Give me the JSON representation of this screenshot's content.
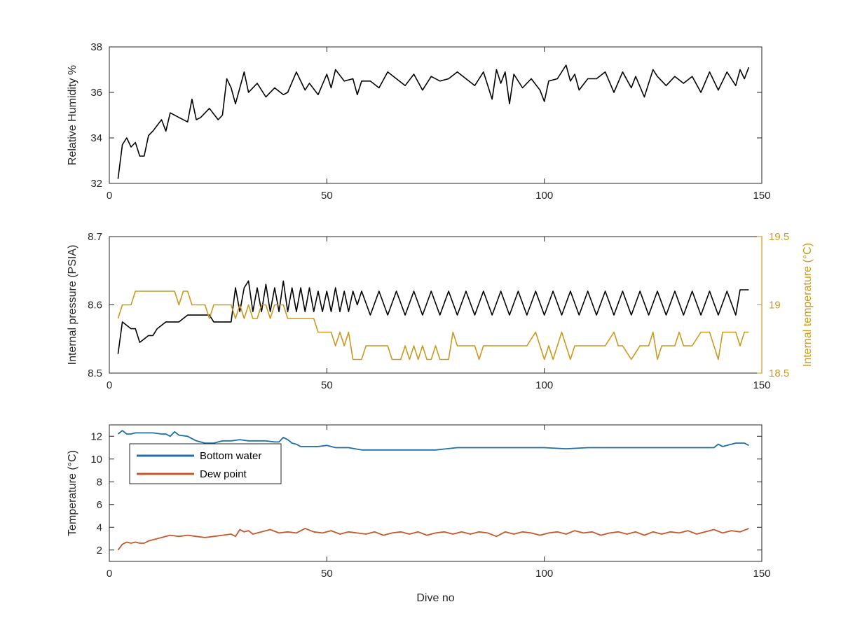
{
  "chart_data": [
    {
      "type": "line",
      "title": "",
      "xlabel": "",
      "ylabel": "Relative Humidity %",
      "xlim": [
        0,
        150
      ],
      "ylim": [
        32,
        38
      ],
      "xticks": [
        0,
        50,
        100,
        150
      ],
      "yticks": [
        32,
        34,
        36,
        38
      ],
      "grid": false,
      "series": [
        {
          "name": "",
          "color": "#000000",
          "x": [
            2,
            3,
            4,
            5,
            6,
            7,
            8,
            9,
            10,
            12,
            13,
            14,
            16,
            18,
            19,
            20,
            21,
            23,
            25,
            26,
            27,
            28,
            29,
            31,
            32,
            34,
            36,
            38,
            40,
            41,
            43,
            45,
            46,
            48,
            50,
            51,
            52,
            54,
            56,
            57,
            58,
            60,
            62,
            64,
            66,
            68,
            70,
            72,
            74,
            76,
            78,
            80,
            82,
            84,
            86,
            88,
            89,
            90,
            91,
            92,
            93,
            95,
            97,
            99,
            100,
            101,
            103,
            105,
            106,
            107,
            108,
            110,
            112,
            114,
            116,
            118,
            120,
            121,
            123,
            125,
            126,
            128,
            130,
            132,
            134,
            136,
            138,
            140,
            142,
            144,
            145,
            146,
            147
          ],
          "y": [
            32.2,
            33.7,
            34.0,
            33.6,
            33.8,
            33.2,
            33.2,
            34.1,
            34.3,
            34.8,
            34.3,
            35.1,
            34.9,
            34.7,
            35.7,
            34.8,
            34.9,
            35.3,
            34.8,
            35.0,
            36.6,
            36.2,
            35.5,
            36.9,
            36.0,
            36.4,
            35.8,
            36.2,
            35.9,
            36.0,
            36.9,
            36.1,
            36.4,
            35.9,
            36.8,
            36.2,
            37.0,
            36.5,
            36.6,
            35.9,
            36.5,
            36.5,
            36.2,
            36.9,
            36.6,
            36.3,
            36.8,
            36.1,
            36.7,
            36.5,
            36.6,
            36.9,
            36.6,
            36.3,
            36.9,
            35.7,
            37.0,
            36.4,
            36.9,
            35.5,
            36.8,
            36.2,
            36.6,
            36.1,
            35.6,
            36.5,
            36.6,
            37.2,
            36.5,
            36.8,
            36.1,
            36.6,
            36.6,
            36.9,
            36.0,
            36.9,
            36.2,
            36.7,
            35.8,
            37.0,
            36.7,
            36.3,
            36.7,
            36.4,
            36.7,
            36.0,
            36.9,
            36.1,
            36.9,
            36.3,
            37.0,
            36.6,
            37.1
          ]
        }
      ]
    },
    {
      "type": "line",
      "title": "",
      "xlabel": "",
      "ylabel": "Internal pressure (PSIA)",
      "y2label": "Internal temperature (°C)",
      "xlim": [
        0,
        150
      ],
      "ylim": [
        8.5,
        8.7
      ],
      "y2lim": [
        18.5,
        19.5
      ],
      "xticks": [
        0,
        50,
        100,
        150
      ],
      "yticks": [
        8.5,
        8.6,
        8.7
      ],
      "y2ticks": [
        18.5,
        19,
        19.5
      ],
      "y2color": "#c79a20",
      "grid": false,
      "series": [
        {
          "name": "",
          "axis": "left",
          "color": "#000000",
          "x": [
            2,
            3,
            4,
            5,
            6,
            7,
            8,
            9,
            10,
            11,
            12,
            13,
            14,
            15,
            16,
            17,
            18,
            19,
            20,
            21,
            22,
            23,
            24,
            25,
            26,
            27,
            28,
            29,
            30,
            31,
            32,
            33,
            34,
            35,
            36,
            37,
            38,
            39,
            40,
            41,
            42,
            43,
            44,
            45,
            46,
            47,
            48,
            49,
            50,
            51,
            52,
            53,
            54,
            55,
            56,
            57,
            58,
            60,
            62,
            64,
            66,
            68,
            70,
            72,
            74,
            76,
            78,
            80,
            82,
            84,
            86,
            88,
            90,
            92,
            94,
            96,
            98,
            100,
            102,
            104,
            106,
            108,
            110,
            112,
            114,
            116,
            118,
            120,
            122,
            124,
            126,
            128,
            130,
            132,
            134,
            136,
            138,
            140,
            142,
            144,
            145,
            146,
            147
          ],
          "y": [
            8.528,
            8.575,
            8.57,
            8.565,
            8.565,
            8.545,
            8.55,
            8.555,
            8.555,
            8.565,
            8.57,
            8.575,
            8.575,
            8.575,
            8.575,
            8.58,
            8.585,
            8.585,
            8.585,
            8.585,
            8.585,
            8.585,
            8.575,
            8.575,
            8.575,
            8.575,
            8.575,
            8.625,
            8.59,
            8.625,
            8.635,
            8.59,
            8.625,
            8.59,
            8.63,
            8.59,
            8.625,
            8.59,
            8.635,
            8.59,
            8.625,
            8.59,
            8.625,
            8.59,
            8.625,
            8.59,
            8.62,
            8.59,
            8.62,
            8.59,
            8.625,
            8.59,
            8.62,
            8.59,
            8.62,
            8.6,
            8.62,
            8.585,
            8.62,
            8.585,
            8.62,
            8.585,
            8.62,
            8.585,
            8.62,
            8.585,
            8.62,
            8.585,
            8.62,
            8.585,
            8.62,
            8.585,
            8.62,
            8.585,
            8.62,
            8.585,
            8.62,
            8.585,
            8.62,
            8.585,
            8.62,
            8.585,
            8.62,
            8.585,
            8.62,
            8.585,
            8.62,
            8.585,
            8.62,
            8.585,
            8.62,
            8.585,
            8.62,
            8.585,
            8.62,
            8.585,
            8.62,
            8.585,
            8.62,
            8.585,
            8.622,
            8.622,
            8.622
          ]
        },
        {
          "name": "",
          "axis": "right",
          "color": "#c79a20",
          "x": [
            2,
            3,
            4,
            5,
            6,
            7,
            8,
            9,
            10,
            12,
            14,
            15,
            16,
            17,
            18,
            19,
            20,
            21,
            22,
            23,
            24,
            25,
            26,
            27,
            28,
            29,
            30,
            31,
            32,
            33,
            34,
            35,
            36,
            37,
            38,
            39,
            40,
            41,
            42,
            44,
            46,
            47,
            48,
            49,
            50,
            51,
            52,
            53,
            54,
            55,
            56,
            57,
            58,
            59,
            60,
            61,
            62,
            63,
            64,
            65,
            66,
            67,
            68,
            69,
            70,
            71,
            72,
            73,
            74,
            75,
            76,
            77,
            78,
            79,
            80,
            81,
            82,
            83,
            84,
            85,
            86,
            88,
            90,
            92,
            94,
            96,
            98,
            99,
            100,
            101,
            102,
            103,
            104,
            105,
            106,
            107,
            108,
            109,
            110,
            112,
            114,
            116,
            117,
            118,
            120,
            122,
            124,
            125,
            126,
            127,
            128,
            130,
            131,
            132,
            134,
            136,
            138,
            140,
            141,
            142,
            144,
            145,
            146,
            147
          ],
          "y": [
            18.9,
            19,
            19,
            19,
            19.1,
            19.1,
            19.1,
            19.1,
            19.1,
            19.1,
            19.1,
            19.1,
            19.0,
            19.1,
            19.1,
            19.0,
            19.0,
            19.0,
            19.0,
            18.9,
            19,
            19,
            19,
            19,
            19.0,
            18.9,
            19,
            18.9,
            19,
            18.9,
            18.9,
            19,
            19,
            18.9,
            19,
            19,
            19,
            18.9,
            18.9,
            18.9,
            18.9,
            18.9,
            18.8,
            18.8,
            18.8,
            18.8,
            18.7,
            18.8,
            18.7,
            18.8,
            18.6,
            18.6,
            18.6,
            18.7,
            18.7,
            18.7,
            18.7,
            18.7,
            18.7,
            18.6,
            18.6,
            18.6,
            18.7,
            18.6,
            18.7,
            18.6,
            18.7,
            18.6,
            18.6,
            18.7,
            18.6,
            18.6,
            18.6,
            18.8,
            18.7,
            18.7,
            18.7,
            18.7,
            18.7,
            18.6,
            18.7,
            18.7,
            18.7,
            18.7,
            18.7,
            18.7,
            18.8,
            18.7,
            18.6,
            18.7,
            18.6,
            18.7,
            18.8,
            18.7,
            18.6,
            18.7,
            18.7,
            18.7,
            18.7,
            18.7,
            18.7,
            18.8,
            18.7,
            18.7,
            18.6,
            18.7,
            18.7,
            18.8,
            18.6,
            18.7,
            18.7,
            18.7,
            18.8,
            18.7,
            18.7,
            18.8,
            18.8,
            18.6,
            18.8,
            18.8,
            18.8,
            18.7,
            18.8,
            18.8
          ]
        }
      ]
    },
    {
      "type": "line",
      "title": "",
      "xlabel": "Dive no",
      "ylabel": "Temperature (°C)",
      "xlim": [
        0,
        150
      ],
      "ylim": [
        1,
        13
      ],
      "xticks": [
        0,
        50,
        100,
        150
      ],
      "yticks": [
        2,
        4,
        6,
        8,
        10,
        12
      ],
      "grid": false,
      "legend": "top-left",
      "series": [
        {
          "name": "Bottom water",
          "color": "#1f6fa5",
          "x": [
            2,
            3,
            4,
            5,
            6,
            8,
            10,
            12,
            13,
            14,
            15,
            16,
            18,
            20,
            22,
            24,
            26,
            28,
            30,
            32,
            34,
            36,
            38,
            39,
            40,
            41,
            42,
            43,
            44,
            46,
            48,
            50,
            52,
            55,
            58,
            60,
            65,
            70,
            75,
            80,
            85,
            90,
            95,
            100,
            105,
            110,
            115,
            120,
            125,
            130,
            135,
            138,
            139,
            140,
            141,
            142,
            143,
            144,
            145,
            146,
            147
          ],
          "y": [
            12.2,
            12.5,
            12.2,
            12.2,
            12.3,
            12.3,
            12.3,
            12.2,
            12.2,
            12.0,
            12.4,
            12.1,
            12.0,
            11.6,
            11.4,
            11.4,
            11.6,
            11.6,
            11.7,
            11.6,
            11.6,
            11.6,
            11.5,
            11.5,
            11.9,
            11.7,
            11.4,
            11.3,
            11.1,
            11.1,
            11.1,
            11.2,
            11.0,
            11.0,
            10.8,
            10.8,
            10.8,
            10.8,
            10.8,
            11.0,
            11.0,
            11.0,
            11.0,
            11.0,
            10.9,
            11.0,
            11.0,
            11.0,
            11.0,
            11.0,
            11.0,
            11.0,
            11.0,
            11.3,
            11.1,
            11.2,
            11.3,
            11.4,
            11.4,
            11.4,
            11.2
          ]
        },
        {
          "name": "Dew point",
          "color": "#c4582c",
          "x": [
            2,
            3,
            4,
            5,
            6,
            7,
            8,
            9,
            10,
            12,
            14,
            16,
            18,
            20,
            22,
            24,
            26,
            28,
            29,
            30,
            31,
            32,
            33,
            35,
            37,
            39,
            41,
            43,
            45,
            47,
            49,
            51,
            53,
            55,
            57,
            59,
            61,
            63,
            65,
            67,
            69,
            71,
            73,
            75,
            77,
            79,
            81,
            83,
            85,
            87,
            89,
            91,
            93,
            95,
            97,
            99,
            101,
            103,
            105,
            107,
            109,
            111,
            113,
            115,
            117,
            119,
            121,
            123,
            125,
            127,
            129,
            131,
            133,
            135,
            137,
            139,
            141,
            143,
            145,
            147
          ],
          "y": [
            2.0,
            2.5,
            2.7,
            2.6,
            2.7,
            2.6,
            2.6,
            2.8,
            2.9,
            3.1,
            3.3,
            3.2,
            3.3,
            3.2,
            3.1,
            3.2,
            3.3,
            3.4,
            3.2,
            3.8,
            3.6,
            3.7,
            3.4,
            3.6,
            3.8,
            3.5,
            3.6,
            3.5,
            3.9,
            3.6,
            3.5,
            3.7,
            3.4,
            3.6,
            3.5,
            3.4,
            3.6,
            3.3,
            3.5,
            3.6,
            3.4,
            3.6,
            3.3,
            3.5,
            3.6,
            3.4,
            3.6,
            3.4,
            3.6,
            3.5,
            3.2,
            3.6,
            3.4,
            3.6,
            3.5,
            3.3,
            3.5,
            3.6,
            3.4,
            3.7,
            3.5,
            3.6,
            3.3,
            3.5,
            3.6,
            3.4,
            3.6,
            3.3,
            3.6,
            3.4,
            3.6,
            3.5,
            3.7,
            3.4,
            3.6,
            3.8,
            3.5,
            3.7,
            3.6,
            3.9
          ]
        }
      ]
    }
  ]
}
